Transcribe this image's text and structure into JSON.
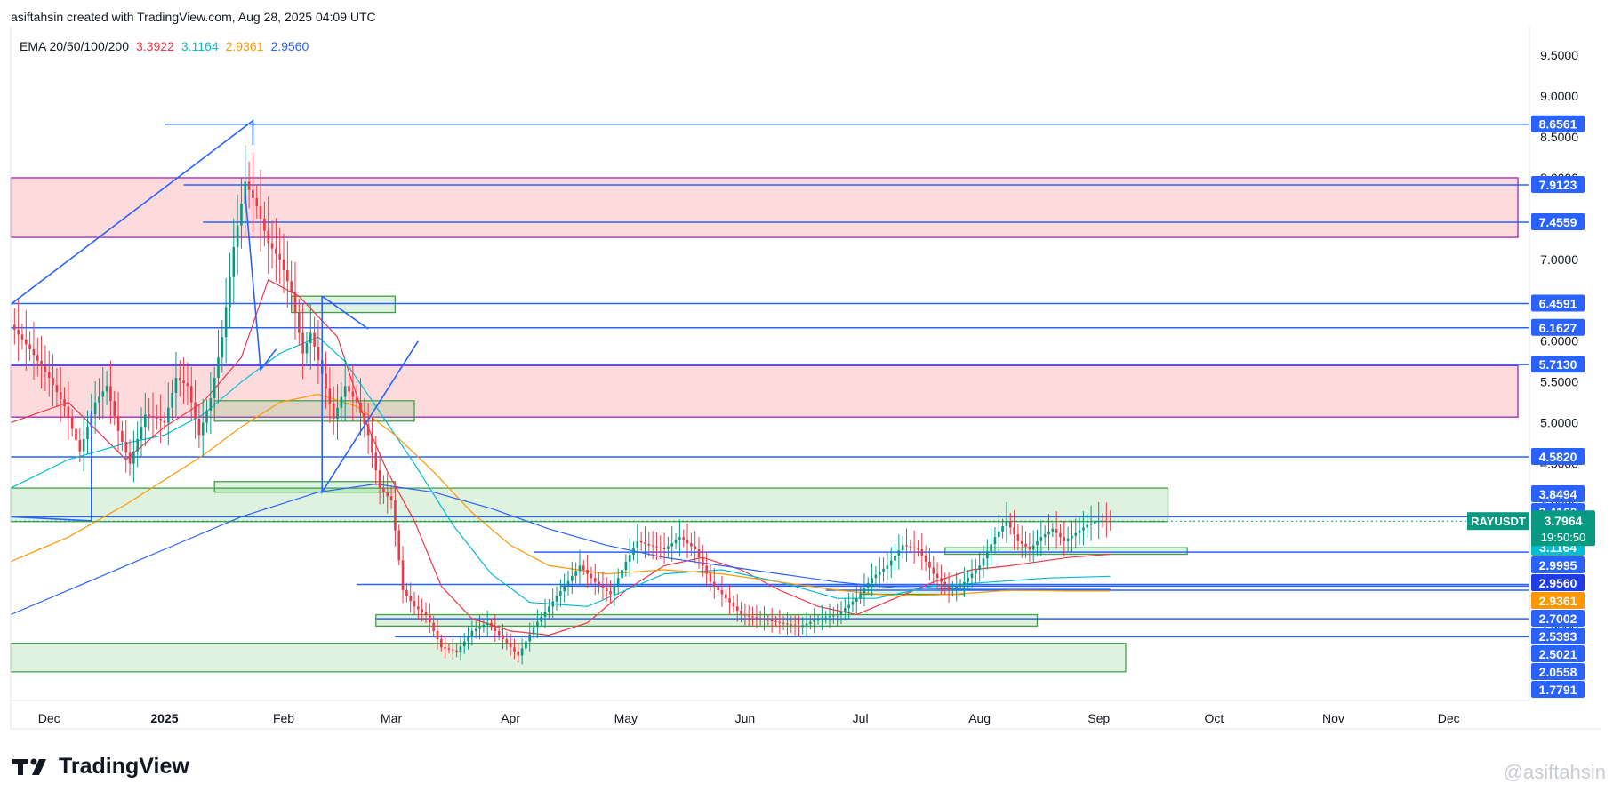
{
  "header": {
    "caption": "asiftahsin created with TradingView.com, Aug 28, 2025 04:09 UTC"
  },
  "legend": {
    "label": "EMA 20/50/100/200",
    "values": [
      {
        "text": "3.3922",
        "color": "#f23645"
      },
      {
        "text": "3.1164",
        "color": "#00bcd4"
      },
      {
        "text": "2.9361",
        "color": "#ff9800"
      },
      {
        "text": "2.9560",
        "color": "#2962ff"
      }
    ]
  },
  "footer": {
    "brand": "TradingView",
    "watermark": "@asiftahsin"
  },
  "chart_data": {
    "type": "candlestick",
    "symbol": "RAYUSDT",
    "symbol_price": "3.7964",
    "countdown": "19:50:50",
    "x_ticks": [
      "Dec",
      "2025",
      "Feb",
      "Mar",
      "Apr",
      "May",
      "Jun",
      "Jul",
      "Aug",
      "Sep",
      "Oct",
      "Nov",
      "Dec"
    ],
    "x_tick_days": [
      -30,
      0,
      31,
      59,
      90,
      120,
      151,
      181,
      212,
      243,
      273,
      304,
      334
    ],
    "x_range_days": [
      -40,
      355
    ],
    "ylim": [
      1.6,
      9.85
    ],
    "y_ticks": [
      "9.5000",
      "9.0000",
      "8.5000",
      "8.0000",
      "7.5000",
      "7.0000",
      "6.5000",
      "6.0000",
      "5.5000",
      "5.0000",
      "4.5000",
      "4.0000",
      "3.5000",
      "3.0000",
      "2.5000",
      "2.0000"
    ],
    "price_labels": [
      {
        "text": "8.6561",
        "value": 8.6561,
        "bg": "#2962ff"
      },
      {
        "text": "7.9123",
        "value": 7.9123,
        "bg": "#2962ff"
      },
      {
        "text": "7.4559",
        "value": 7.4559,
        "bg": "#2962ff"
      },
      {
        "text": "6.4591",
        "value": 6.4591,
        "bg": "#2962ff"
      },
      {
        "text": "6.1627",
        "value": 6.1627,
        "bg": "#2962ff"
      },
      {
        "text": "5.7130",
        "value": 5.713,
        "bg": "#2962ff"
      },
      {
        "text": "4.5820",
        "value": 4.582,
        "bg": "#2962ff"
      },
      {
        "text": "3.8494",
        "value": 3.8494,
        "bg": "#2962ff"
      },
      {
        "text": "3.4160",
        "value": 3.416,
        "bg": "#2962ff"
      },
      {
        "text": "3.3922",
        "value": 3.3922,
        "bg": "#f23645"
      },
      {
        "text": "3.1164",
        "value": 3.1164,
        "bg": "#00bcd4"
      },
      {
        "text": "2.9995",
        "value": 2.9995,
        "bg": "#2962ff"
      },
      {
        "text": "2.9560",
        "value": 2.956,
        "bg": "#1e3ce8"
      },
      {
        "text": "2.9361",
        "value": 2.9361,
        "bg": "#ff9800"
      },
      {
        "text": "2.7002",
        "value": 2.7002,
        "bg": "#2962ff"
      },
      {
        "text": "2.5393",
        "value": 2.5393,
        "bg": "#2962ff"
      },
      {
        "text": "2.5021",
        "value": 2.5021,
        "bg": "#2962ff"
      },
      {
        "text": "2.0558",
        "value": 2.0558,
        "bg": "#2962ff"
      },
      {
        "text": "1.7791",
        "value": 1.7791,
        "bg": "#2962ff"
      }
    ],
    "horizontal_lines": [
      {
        "y": 8.6561,
        "x_start_day": 0
      },
      {
        "y": 7.9123,
        "x_start_day": 5
      },
      {
        "y": 7.4559,
        "x_start_day": 10
      },
      {
        "y": 6.4591,
        "x_start_day": -40
      },
      {
        "y": 6.1627,
        "x_start_day": -40
      },
      {
        "y": 5.713,
        "x_start_day": -40
      },
      {
        "y": 4.582,
        "x_start_day": -40
      },
      {
        "y": 3.8494,
        "x_start_day": -40
      },
      {
        "y": 3.416,
        "x_start_day": 96
      },
      {
        "y": 3.02,
        "x_start_day": 50
      },
      {
        "y": 2.9995,
        "x_start_day": 103
      },
      {
        "y": 2.95,
        "x_start_day": 172
      },
      {
        "y": 2.6,
        "x_start_day": 55
      },
      {
        "y": 2.38,
        "x_start_day": 60
      }
    ],
    "red_zones": [
      {
        "y_low": 7.27,
        "y_high": 8.0,
        "x_start_day": -40,
        "x_end_day": 352
      },
      {
        "y_low": 5.07,
        "y_high": 5.7,
        "x_start_day": -40,
        "x_end_day": 352
      }
    ],
    "green_zones": [
      {
        "y_low": 3.79,
        "y_high": 4.2,
        "x_start_day": -40,
        "x_end_day": 261
      },
      {
        "y_low": 1.95,
        "y_high": 2.3,
        "x_start_day": -40,
        "x_end_day": 250
      },
      {
        "y_low": 6.35,
        "y_high": 6.55,
        "x_start_day": 33,
        "x_end_day": 60
      },
      {
        "y_low": 5.02,
        "y_high": 5.27,
        "x_start_day": 13,
        "x_end_day": 65
      },
      {
        "y_low": 4.15,
        "y_high": 4.28,
        "x_start_day": 13,
        "x_end_day": 60
      },
      {
        "y_low": 2.51,
        "y_high": 2.65,
        "x_start_day": 55,
        "x_end_day": 227
      },
      {
        "y_low": 3.39,
        "y_high": 3.47,
        "x_start_day": 203,
        "x_end_day": 266
      },
      {
        "y_low": 2.9,
        "y_high": 3.0,
        "x_start_day": 181,
        "x_end_day": 208
      }
    ],
    "ema_series": [
      {
        "name": "EMA 20",
        "color": "#f23645",
        "points": [
          [
            -40,
            5.0
          ],
          [
            -25,
            5.25
          ],
          [
            -10,
            4.55
          ],
          [
            0,
            4.95
          ],
          [
            10,
            5.25
          ],
          [
            20,
            5.8
          ],
          [
            27,
            6.75
          ],
          [
            35,
            6.55
          ],
          [
            45,
            6.05
          ],
          [
            52,
            5.05
          ],
          [
            58,
            4.4
          ],
          [
            65,
            3.8
          ],
          [
            72,
            3.0
          ],
          [
            80,
            2.6
          ],
          [
            90,
            2.45
          ],
          [
            100,
            2.4
          ],
          [
            110,
            2.55
          ],
          [
            120,
            2.95
          ],
          [
            130,
            3.25
          ],
          [
            140,
            3.35
          ],
          [
            150,
            3.2
          ],
          [
            160,
            2.95
          ],
          [
            170,
            2.75
          ],
          [
            180,
            2.65
          ],
          [
            190,
            2.85
          ],
          [
            200,
            3.05
          ],
          [
            210,
            3.2
          ],
          [
            220,
            3.25
          ],
          [
            235,
            3.35
          ],
          [
            246,
            3.39
          ]
        ]
      },
      {
        "name": "EMA 50",
        "color": "#00bcd4",
        "points": [
          [
            -40,
            4.2
          ],
          [
            -25,
            4.55
          ],
          [
            -10,
            4.75
          ],
          [
            0,
            4.85
          ],
          [
            10,
            5.1
          ],
          [
            20,
            5.5
          ],
          [
            30,
            5.85
          ],
          [
            40,
            6.05
          ],
          [
            47,
            5.75
          ],
          [
            55,
            5.2
          ],
          [
            65,
            4.5
          ],
          [
            75,
            3.75
          ],
          [
            85,
            3.15
          ],
          [
            95,
            2.8
          ],
          [
            110,
            2.75
          ],
          [
            120,
            2.95
          ],
          [
            130,
            3.15
          ],
          [
            145,
            3.2
          ],
          [
            160,
            3.05
          ],
          [
            175,
            2.85
          ],
          [
            185,
            2.85
          ],
          [
            200,
            3.0
          ],
          [
            215,
            3.05
          ],
          [
            230,
            3.1
          ],
          [
            246,
            3.12
          ]
        ]
      },
      {
        "name": "EMA 100",
        "color": "#ff9800",
        "points": [
          [
            -40,
            3.3
          ],
          [
            -25,
            3.6
          ],
          [
            -10,
            4.0
          ],
          [
            0,
            4.3
          ],
          [
            10,
            4.6
          ],
          [
            20,
            4.95
          ],
          [
            30,
            5.25
          ],
          [
            40,
            5.35
          ],
          [
            50,
            5.2
          ],
          [
            60,
            4.85
          ],
          [
            70,
            4.4
          ],
          [
            80,
            3.9
          ],
          [
            90,
            3.5
          ],
          [
            100,
            3.25
          ],
          [
            115,
            3.15
          ],
          [
            130,
            3.2
          ],
          [
            145,
            3.15
          ],
          [
            160,
            3.05
          ],
          [
            175,
            2.95
          ],
          [
            190,
            2.88
          ],
          [
            205,
            2.9
          ],
          [
            220,
            2.95
          ],
          [
            235,
            2.94
          ],
          [
            246,
            2.94
          ]
        ]
      },
      {
        "name": "EMA 200",
        "color": "#2962ff",
        "points": [
          [
            -40,
            2.65
          ],
          [
            -20,
            3.05
          ],
          [
            0,
            3.45
          ],
          [
            20,
            3.85
          ],
          [
            40,
            4.15
          ],
          [
            55,
            4.25
          ],
          [
            70,
            4.15
          ],
          [
            85,
            3.95
          ],
          [
            100,
            3.7
          ],
          [
            115,
            3.5
          ],
          [
            130,
            3.35
          ],
          [
            145,
            3.25
          ],
          [
            160,
            3.15
          ],
          [
            175,
            3.05
          ],
          [
            190,
            2.98
          ],
          [
            210,
            2.96
          ],
          [
            246,
            2.96
          ]
        ]
      }
    ],
    "price_path": [
      [
        -40,
        6.2
      ],
      [
        -35,
        5.9
      ],
      [
        -30,
        5.55
      ],
      [
        -26,
        5.2
      ],
      [
        -22,
        4.65
      ],
      [
        -18,
        5.25
      ],
      [
        -15,
        5.45
      ],
      [
        -12,
        4.9
      ],
      [
        -9,
        4.5
      ],
      [
        -5,
        5.1
      ],
      [
        -2,
        5.05
      ],
      [
        0,
        5.0
      ],
      [
        3,
        5.55
      ],
      [
        6,
        5.45
      ],
      [
        9,
        4.85
      ],
      [
        12,
        5.3
      ],
      [
        15,
        6.05
      ],
      [
        18,
        7.15
      ],
      [
        21,
        7.95
      ],
      [
        24,
        7.65
      ],
      [
        27,
        7.2
      ],
      [
        30,
        7.0
      ],
      [
        33,
        6.6
      ],
      [
        36,
        5.85
      ],
      [
        38,
        6.1
      ],
      [
        41,
        5.6
      ],
      [
        44,
        5.05
      ],
      [
        47,
        5.45
      ],
      [
        50,
        5.25
      ],
      [
        53,
        4.85
      ],
      [
        56,
        4.2
      ],
      [
        59,
        4.05
      ],
      [
        62,
        2.95
      ],
      [
        65,
        2.75
      ],
      [
        68,
        2.65
      ],
      [
        72,
        2.25
      ],
      [
        76,
        2.2
      ],
      [
        80,
        2.45
      ],
      [
        84,
        2.55
      ],
      [
        88,
        2.35
      ],
      [
        92,
        2.15
      ],
      [
        96,
        2.5
      ],
      [
        100,
        2.75
      ],
      [
        104,
        3.0
      ],
      [
        108,
        3.25
      ],
      [
        112,
        3.05
      ],
      [
        116,
        2.9
      ],
      [
        120,
        3.3
      ],
      [
        123,
        3.55
      ],
      [
        126,
        3.5
      ],
      [
        130,
        3.45
      ],
      [
        134,
        3.6
      ],
      [
        138,
        3.45
      ],
      [
        142,
        3.05
      ],
      [
        146,
        2.85
      ],
      [
        150,
        2.65
      ],
      [
        155,
        2.6
      ],
      [
        160,
        2.55
      ],
      [
        165,
        2.5
      ],
      [
        170,
        2.6
      ],
      [
        175,
        2.65
      ],
      [
        180,
        2.85
      ],
      [
        184,
        3.1
      ],
      [
        188,
        3.25
      ],
      [
        192,
        3.5
      ],
      [
        196,
        3.45
      ],
      [
        200,
        3.15
      ],
      [
        204,
        2.95
      ],
      [
        208,
        3.05
      ],
      [
        212,
        3.25
      ],
      [
        216,
        3.6
      ],
      [
        219,
        3.8
      ],
      [
        222,
        3.55
      ],
      [
        225,
        3.45
      ],
      [
        228,
        3.6
      ],
      [
        231,
        3.7
      ],
      [
        234,
        3.55
      ],
      [
        237,
        3.65
      ],
      [
        240,
        3.75
      ],
      [
        243,
        3.8
      ],
      [
        246,
        3.7964
      ]
    ],
    "drawing_lines": [
      {
        "color": "#2962ff",
        "points": [
          [
            -40,
            6.45
          ],
          [
            23,
            8.7
          ],
          [
            23,
            8.4
          ],
          [
            23,
            8.7
          ]
        ]
      },
      {
        "color": "#2962ff",
        "points": [
          [
            21,
            7.8
          ],
          [
            25,
            5.65
          ],
          [
            29,
            5.9
          ]
        ]
      },
      {
        "color": "#2962ff",
        "points": [
          [
            41,
            6.55
          ],
          [
            53,
            6.15
          ]
        ]
      },
      {
        "color": "#2962ff",
        "points": [
          [
            41,
            6.55
          ],
          [
            41,
            4.15
          ],
          [
            66,
            6.0
          ]
        ]
      },
      {
        "color": "#2962ff",
        "points": [
          [
            -40,
            3.85
          ],
          [
            -19,
            3.8
          ],
          [
            -19,
            5.15
          ]
        ]
      }
    ],
    "last_price_line": 3.7964
  }
}
